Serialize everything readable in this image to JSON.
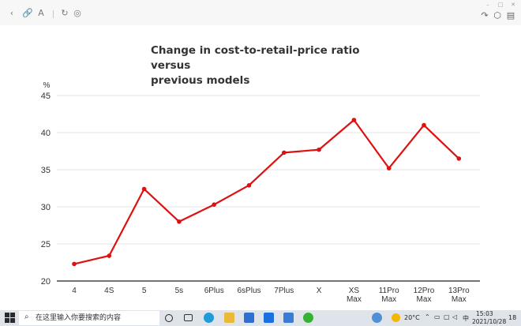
{
  "toolbar": {
    "icons": [
      "back-icon",
      "link-icon",
      "read-aloud-icon",
      "refresh-icon",
      "globe-icon"
    ],
    "right_icons": [
      "share-icon",
      "box-icon",
      "note-icon"
    ]
  },
  "chart_data": {
    "type": "line",
    "title": "Change in cost-to-retail-price ratio versus previous models",
    "title_lines": [
      "Change in cost-to-retail-price ratio versus",
      "previous models"
    ],
    "ylabel": "%",
    "xlabel": "",
    "ylim": [
      20,
      45
    ],
    "yticks": [
      "20",
      "25",
      "30",
      "35",
      "40",
      "45"
    ],
    "grid": true,
    "line_color": "#dd1111",
    "categories": [
      "4",
      "4S",
      "5",
      "5s",
      "6Plus",
      "6sPlus",
      "7Plus",
      "X",
      "XS Max",
      "11Pro Max",
      "12Pro Max",
      "13Pro Max"
    ],
    "category_lines": [
      [
        "4"
      ],
      [
        "4S"
      ],
      [
        "5"
      ],
      [
        "5s"
      ],
      [
        "6Plus"
      ],
      [
        "6sPlus"
      ],
      [
        "7Plus"
      ],
      [
        "X"
      ],
      [
        "XS",
        "Max"
      ],
      [
        "11Pro",
        "Max"
      ],
      [
        "12Pro",
        "Max"
      ],
      [
        "13Pro",
        "Max"
      ]
    ],
    "values": [
      22.3,
      23.4,
      32.4,
      28.0,
      30.3,
      32.9,
      37.3,
      37.7,
      41.7,
      35.2,
      41.0,
      36.5
    ]
  },
  "taskbar": {
    "search_placeholder": "在这里输入你要搜索的内容",
    "weather": "20°C",
    "ime": "中",
    "time": "15:03",
    "date": "2021/10/28",
    "notification_count": "18"
  }
}
